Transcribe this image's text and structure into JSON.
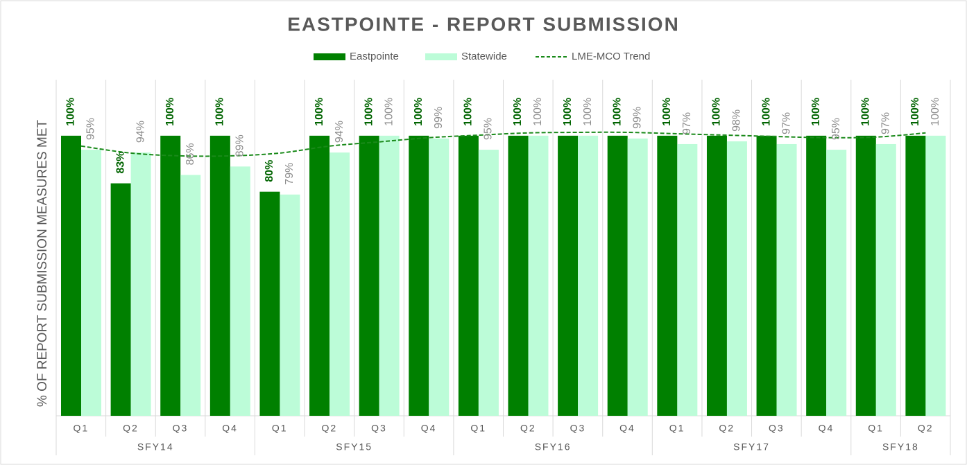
{
  "chart_data": {
    "type": "bar",
    "title": "EASTPOINTE - REPORT SUBMISSION",
    "y_axis_label": "% OF REPORT SUBMISSION MEASURES MET",
    "groups": [
      {
        "name": "SFY14",
        "quarters": [
          "Q1",
          "Q2",
          "Q3",
          "Q4"
        ]
      },
      {
        "name": "SFY15",
        "quarters": [
          "Q1",
          "Q2",
          "Q3",
          "Q4"
        ]
      },
      {
        "name": "SFY16",
        "quarters": [
          "Q1",
          "Q2",
          "Q3",
          "Q4"
        ]
      },
      {
        "name": "SFY17",
        "quarters": [
          "Q1",
          "Q2",
          "Q3",
          "Q4"
        ]
      },
      {
        "name": "SFY18",
        "quarters": [
          "Q1",
          "Q2"
        ]
      }
    ],
    "ylim": [
      0,
      120
    ],
    "series": [
      {
        "name": "Eastpointe",
        "color": "#008000",
        "label_color": "#006400",
        "values": [
          100,
          83,
          100,
          100,
          80,
          100,
          100,
          100,
          100,
          100,
          100,
          100,
          100,
          100,
          100,
          100,
          100,
          100
        ],
        "value_labels": [
          "100%",
          "83%",
          "100%",
          "100%",
          "80%",
          "100%",
          "100%",
          "100%",
          "100%",
          "100%",
          "100%",
          "100%",
          "100%",
          "100%",
          "100%",
          "100%",
          "100%",
          "100%"
        ]
      },
      {
        "name": "Statewide",
        "color": "#bcfcd8",
        "label_color": "#8c8c8c",
        "values": [
          95,
          94,
          86,
          89,
          79,
          94,
          100,
          99,
          95,
          100,
          100,
          99,
          97,
          98,
          97,
          95,
          97,
          100
        ],
        "value_labels": [
          "95%",
          "94%",
          "86%",
          "89%",
          "79%",
          "94%",
          "100%",
          "99%",
          "95%",
          "100%",
          "100%",
          "99%",
          "97%",
          "98%",
          "97%",
          "95%",
          "97%",
          "100%"
        ]
      }
    ],
    "trend": {
      "name": "LME-MCO Trend",
      "color": "#1a8a1a",
      "values": [
        96.3,
        93.8,
        92.8,
        92.8,
        93.8,
        96.3,
        97.8,
        99.3,
        100.2,
        101,
        101.2,
        101.2,
        100.7,
        100.2,
        99.7,
        99.3,
        99.5,
        101
      ]
    }
  }
}
